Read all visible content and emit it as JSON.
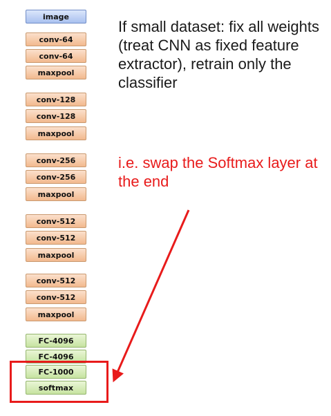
{
  "network": {
    "layers": [
      {
        "label": "image",
        "kind": "img"
      },
      {
        "label": "conv-64",
        "kind": "conv"
      },
      {
        "label": "conv-64",
        "kind": "conv"
      },
      {
        "label": "maxpool",
        "kind": "pool"
      },
      {
        "label": "conv-128",
        "kind": "conv"
      },
      {
        "label": "conv-128",
        "kind": "conv"
      },
      {
        "label": "maxpool",
        "kind": "pool"
      },
      {
        "label": "conv-256",
        "kind": "conv"
      },
      {
        "label": "conv-256",
        "kind": "conv"
      },
      {
        "label": "maxpool",
        "kind": "pool"
      },
      {
        "label": "conv-512",
        "kind": "conv"
      },
      {
        "label": "conv-512",
        "kind": "conv"
      },
      {
        "label": "maxpool",
        "kind": "pool"
      },
      {
        "label": "conv-512",
        "kind": "conv"
      },
      {
        "label": "conv-512",
        "kind": "conv"
      },
      {
        "label": "maxpool",
        "kind": "pool"
      },
      {
        "label": "FC-4096",
        "kind": "fc"
      },
      {
        "label": "FC-4096",
        "kind": "fc"
      },
      {
        "label": "FC-1000",
        "kind": "fc"
      },
      {
        "label": "softmax",
        "kind": "fc"
      }
    ]
  },
  "text": {
    "main": "If small dataset: fix all weights (treat CNN as fixed feature extractor), retrain only the classifier",
    "note": "i.e. swap the Softmax layer at the end"
  },
  "colors": {
    "accent": "#e81b1b",
    "conv": "#f2b98e",
    "fc": "#c6e3a0",
    "image": "#a9c1ef"
  }
}
